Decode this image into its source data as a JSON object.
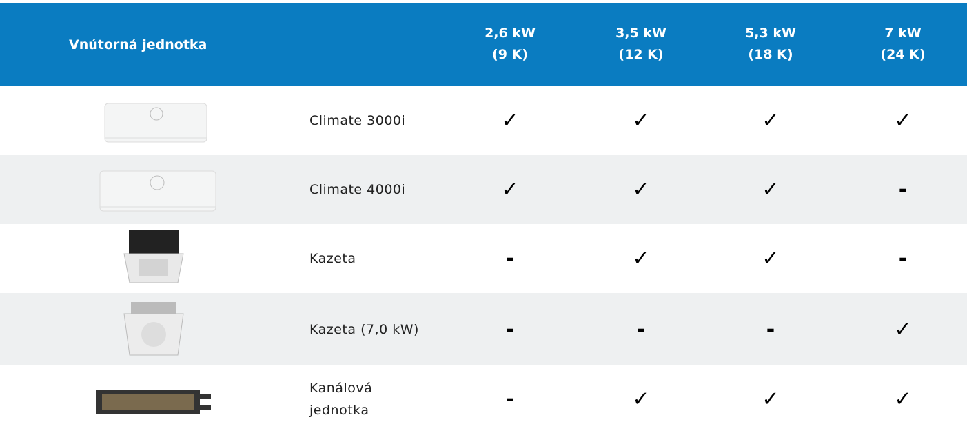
{
  "header": {
    "title": "Vnútorná jednotka",
    "columns": [
      {
        "power": "2,6 kW",
        "size": "(9 K)"
      },
      {
        "power": "3,5 kW",
        "size": "(12 K)"
      },
      {
        "power": "5,3 kW",
        "size": "(18 K)"
      },
      {
        "power": "7 kW",
        "size": "(24 K)"
      }
    ]
  },
  "table": {
    "rows": [
      {
        "name": [
          "Climate 3000i"
        ],
        "cells": [
          "✓",
          "✓",
          "✓",
          "✓"
        ]
      },
      {
        "name": [
          "Climate 4000i"
        ],
        "cells": [
          "✓",
          "✓",
          "✓",
          "-"
        ]
      },
      {
        "name": [
          "Kazeta"
        ],
        "cells": [
          "-",
          "✓",
          "✓",
          "-"
        ]
      },
      {
        "name": [
          "Kazeta (7,0 kW)"
        ],
        "cells": [
          "-",
          "-",
          "-",
          "✓"
        ]
      },
      {
        "name": [
          "Kanálová",
          "jednotka"
        ],
        "cells": [
          "-",
          "✓",
          "✓",
          "✓"
        ]
      }
    ]
  }
}
